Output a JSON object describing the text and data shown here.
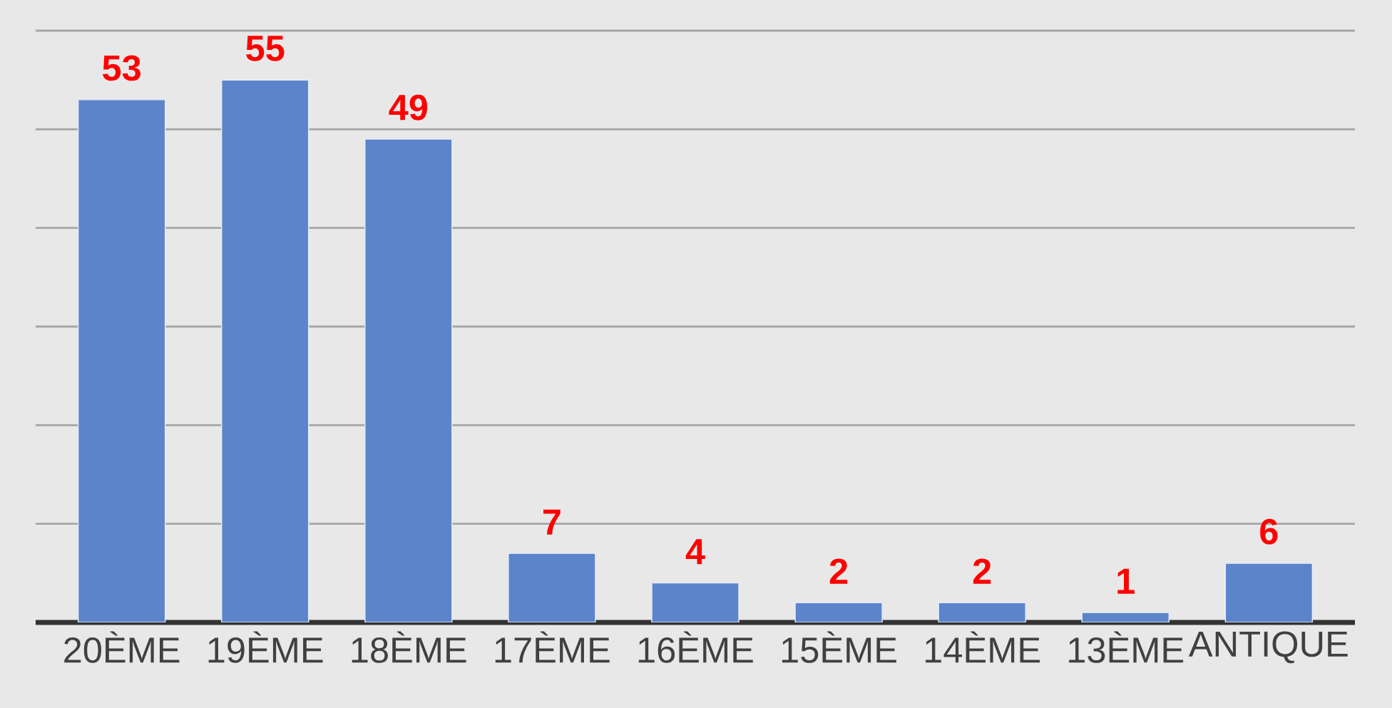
{
  "chart_data": {
    "type": "bar",
    "categories": [
      "20ÈME",
      "19ÈME",
      "18ÈME",
      "17ÈME",
      "16ÈME",
      "15ÈME",
      "14ÈME",
      "13ÈME",
      "ANTIQUE"
    ],
    "values": [
      53,
      55,
      49,
      7,
      4,
      2,
      2,
      1,
      6
    ],
    "color": "#5b84cb",
    "ylim": [
      0,
      60
    ],
    "yticks": [
      {
        "value": 0,
        "label": null
      },
      {
        "value": 10,
        "label": null
      },
      {
        "value": 20,
        "label": null
      },
      {
        "value": 30,
        "label": null
      },
      {
        "value": 40,
        "label": null
      },
      {
        "value": 50,
        "label": null
      },
      {
        "value": 60,
        "label": null
      }
    ],
    "tick_labels": "x",
    "grid": "y",
    "data_labels": true
  }
}
